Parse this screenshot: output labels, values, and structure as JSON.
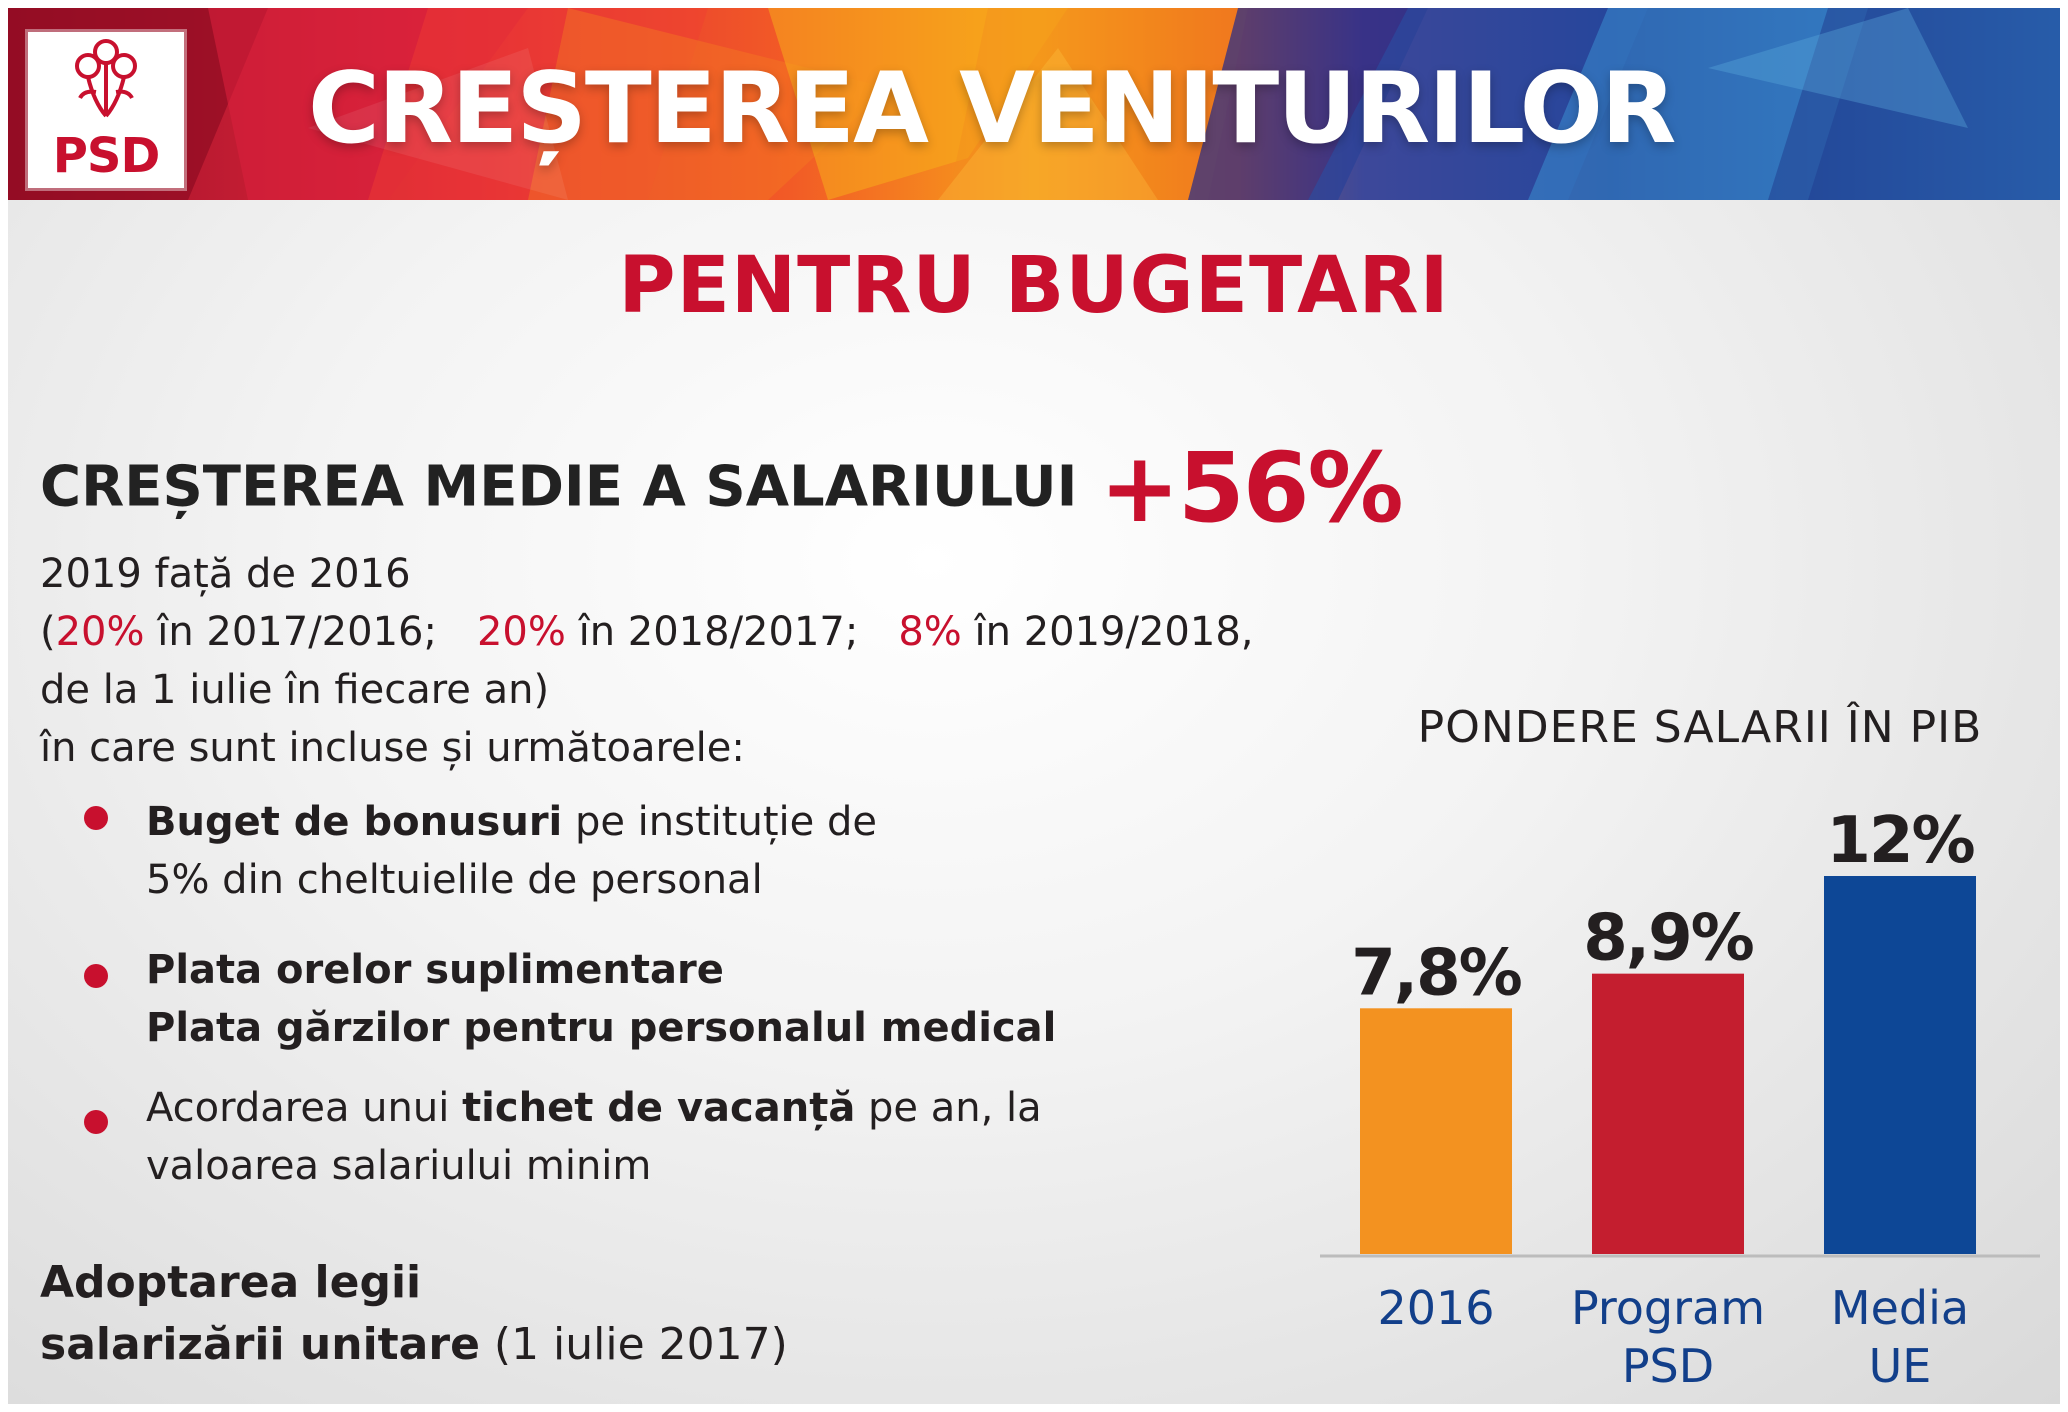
{
  "header": {
    "logo_text": "PSD",
    "title": "CREȘTEREA VENITURILOR"
  },
  "subtitle": "PENTRU BUGETARI",
  "headline": {
    "label": "CREȘTEREA MEDIE A SALARIULUI",
    "value": "+56%"
  },
  "details": {
    "line1": "2019 față de 2016",
    "paren_open": "(",
    "p1": "20%",
    "t1": " în 2017/2016;",
    "p2": "20%",
    "t2": " în 2018/2017;",
    "p3": "8%",
    "t3": " în 2019/2018,",
    "line3": "de la 1 iulie în fiecare an)",
    "line4": "în care sunt incluse și următoarele:"
  },
  "bullets": [
    {
      "bold": "Buget de bonusuri",
      "rest": " pe instituție de",
      "line2": "5% din cheltuielile de personal"
    },
    {
      "line1": "Plata orelor suplimentare",
      "line2": "Plata gărzilor pentru personalul medical"
    },
    {
      "pre": "Acordarea unui ",
      "bold": "tichet de vacanță",
      "post": " pe an, la",
      "line2": "valoarea salariului minim"
    }
  ],
  "law": {
    "line1": "Adoptarea legii",
    "line2_bold": "salarizării unitare",
    "line2_rest": " (1 iulie 2017)"
  },
  "colors": {
    "brand_red": "#c8102e",
    "orange": "#f39220",
    "navy": "#0d4796",
    "dark_text": "#231f20"
  },
  "chart_data": {
    "type": "bar",
    "title": "PONDERE SALARII ÎN PIB",
    "categories": [
      [
        "2016"
      ],
      [
        "Program",
        "PSD"
      ],
      [
        "Media",
        "UE"
      ]
    ],
    "values": [
      7.8,
      8.9,
      12
    ],
    "value_labels": [
      "7,8%",
      "8,9%",
      "12%"
    ],
    "colors": [
      "#f39220",
      "#c41e2f",
      "#0d4796"
    ],
    "category_color": "#123f8a",
    "ylim": [
      0,
      12
    ],
    "grid": false,
    "legend": "none"
  }
}
